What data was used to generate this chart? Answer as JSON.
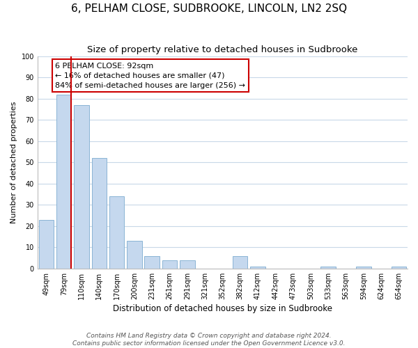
{
  "title": "6, PELHAM CLOSE, SUDBROOKE, LINCOLN, LN2 2SQ",
  "subtitle": "Size of property relative to detached houses in Sudbrooke",
  "xlabel": "Distribution of detached houses by size in Sudbrooke",
  "ylabel": "Number of detached properties",
  "bar_labels": [
    "49sqm",
    "79sqm",
    "110sqm",
    "140sqm",
    "170sqm",
    "200sqm",
    "231sqm",
    "261sqm",
    "291sqm",
    "321sqm",
    "352sqm",
    "382sqm",
    "412sqm",
    "442sqm",
    "473sqm",
    "503sqm",
    "533sqm",
    "563sqm",
    "594sqm",
    "624sqm",
    "654sqm"
  ],
  "bar_values": [
    23,
    82,
    77,
    52,
    34,
    13,
    6,
    4,
    4,
    0,
    0,
    6,
    1,
    0,
    0,
    0,
    1,
    0,
    1,
    0,
    1
  ],
  "bar_color": "#c5d8ee",
  "bar_edge_color": "#8ab4d4",
  "vline_color": "#cc0000",
  "annotation_text": "6 PELHAM CLOSE: 92sqm\n← 16% of detached houses are smaller (47)\n84% of semi-detached houses are larger (256) →",
  "annotation_box_color": "#ffffff",
  "annotation_box_edge": "#cc0000",
  "ylim": [
    0,
    100
  ],
  "yticks": [
    0,
    10,
    20,
    30,
    40,
    50,
    60,
    70,
    80,
    90,
    100
  ],
  "footer1": "Contains HM Land Registry data © Crown copyright and database right 2024.",
  "footer2": "Contains public sector information licensed under the Open Government Licence v3.0.",
  "background_color": "#ffffff",
  "grid_color": "#c8d8e8",
  "title_fontsize": 11,
  "subtitle_fontsize": 9.5,
  "xlabel_fontsize": 8.5,
  "ylabel_fontsize": 8,
  "tick_fontsize": 7,
  "annotation_fontsize": 8,
  "footer_fontsize": 6.5
}
